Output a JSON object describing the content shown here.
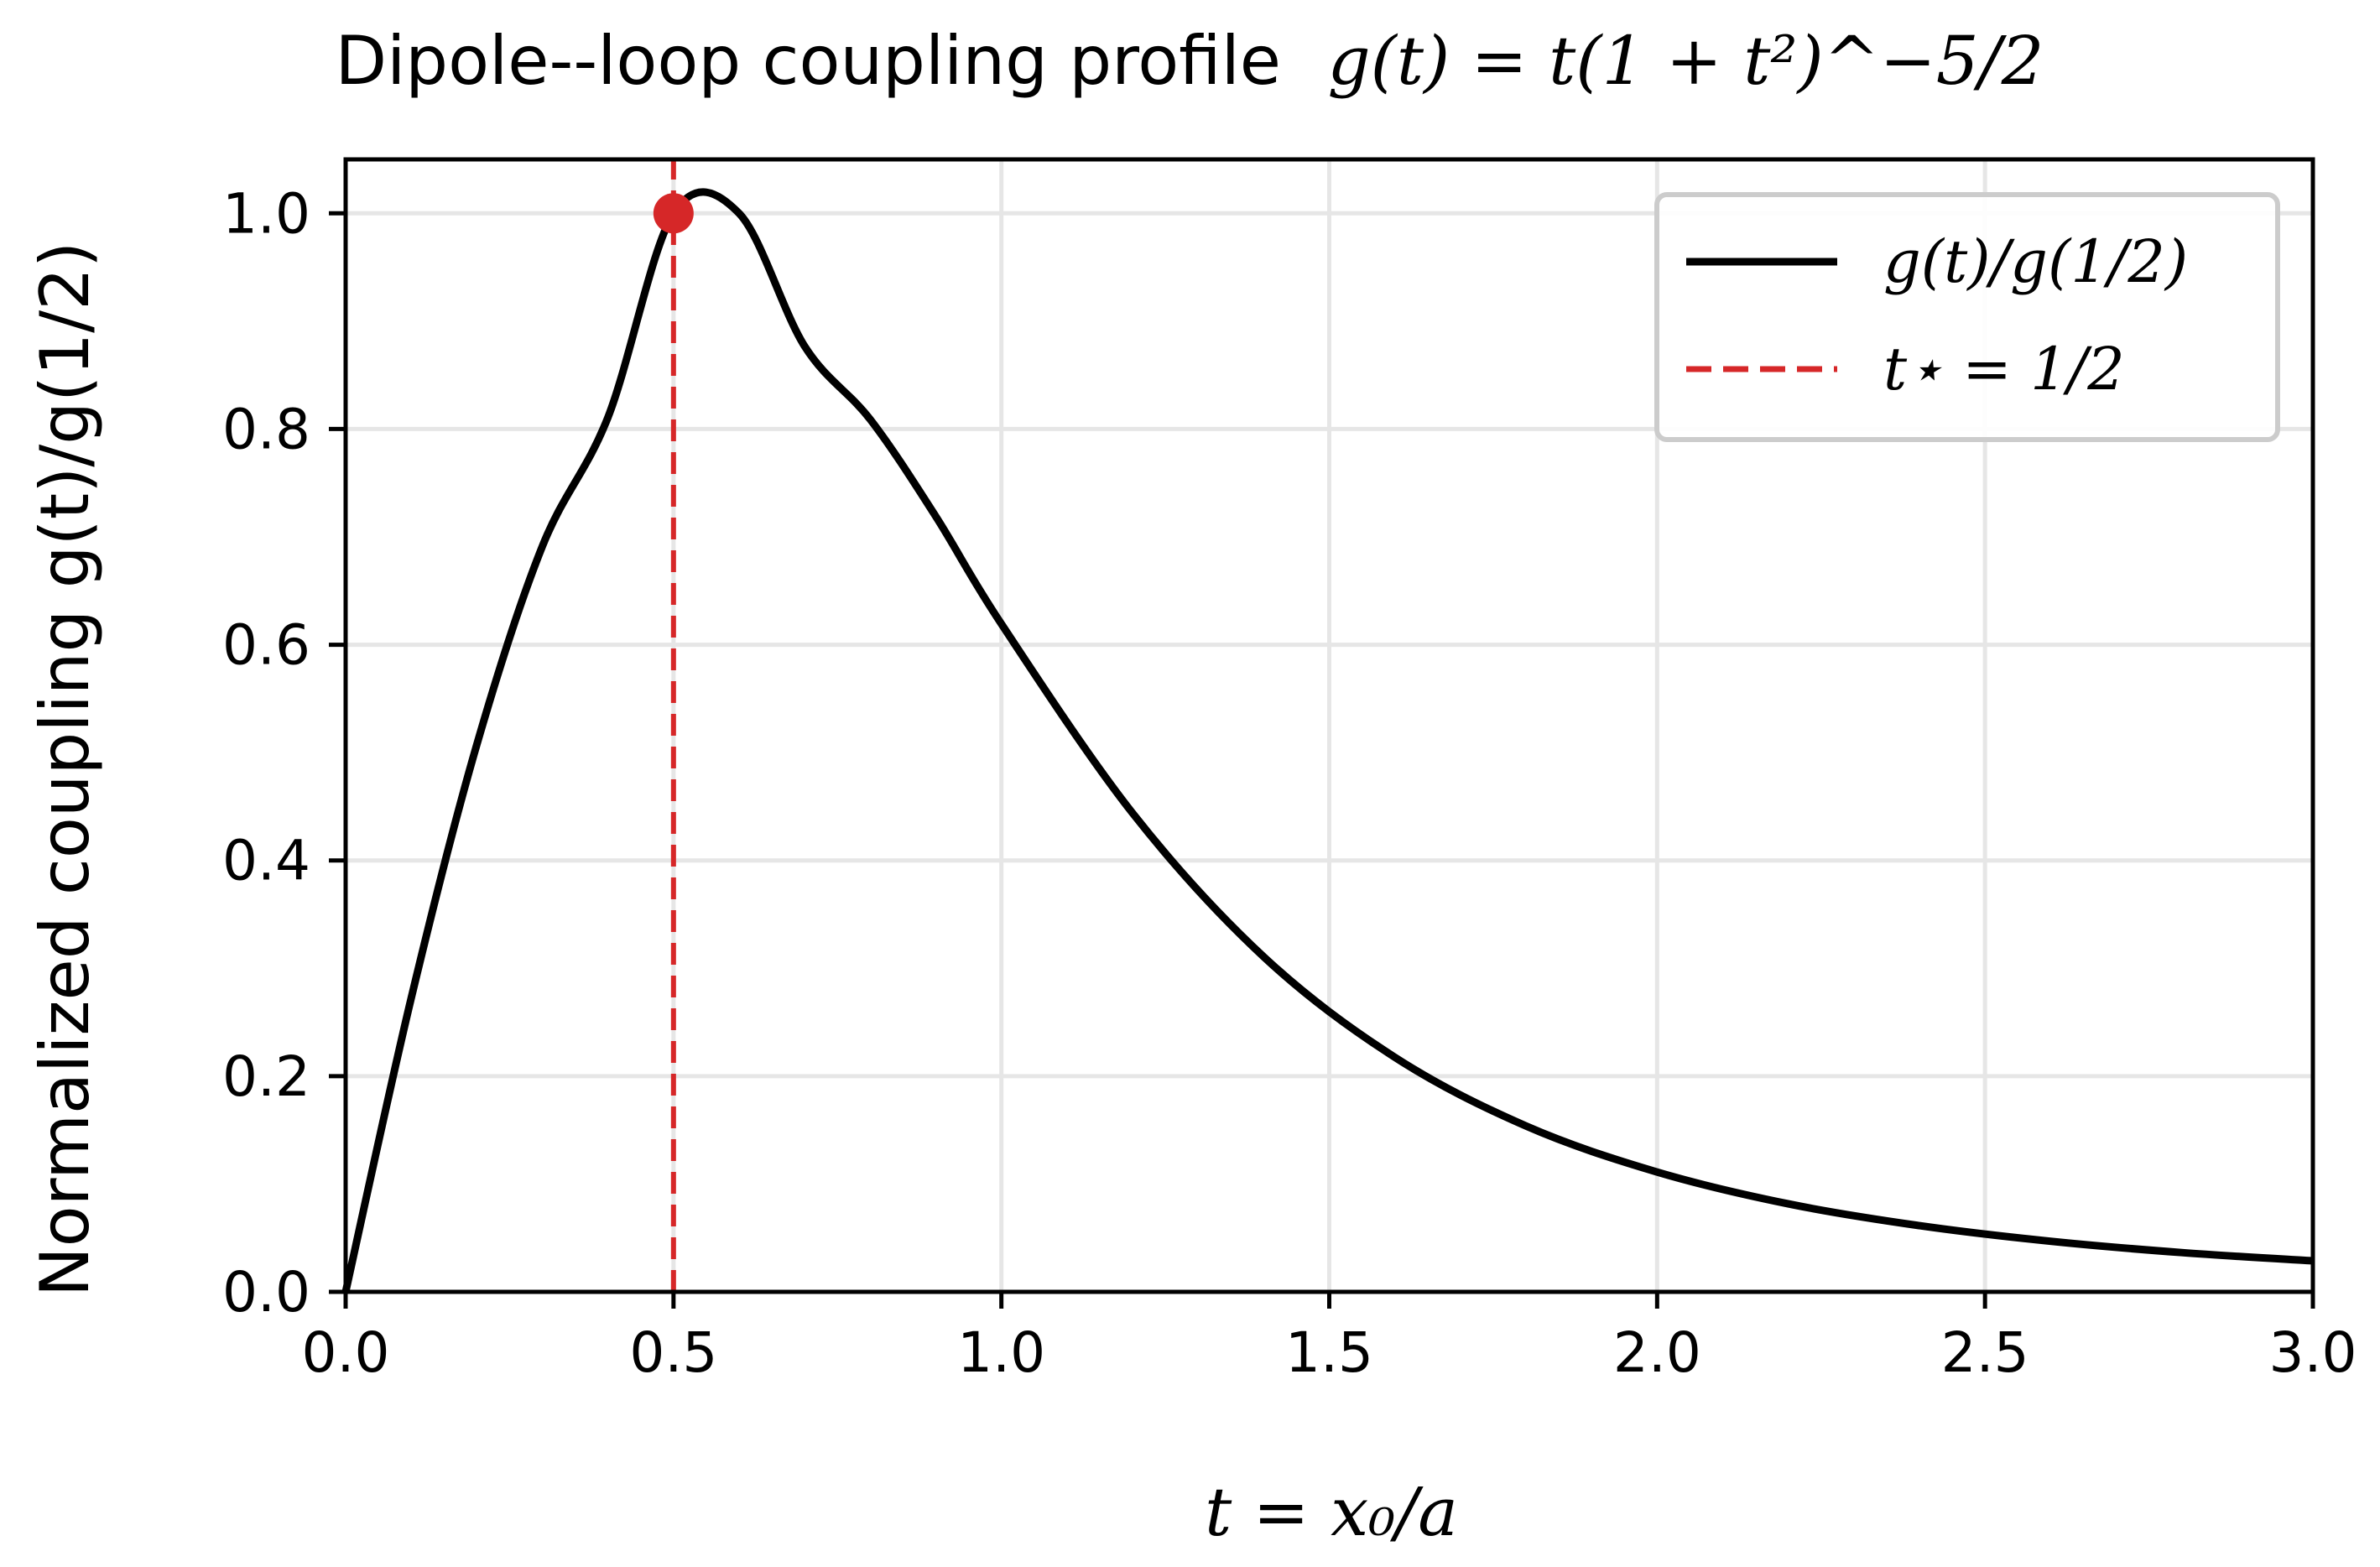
{
  "chart_data": {
    "type": "line",
    "title_prefix": "Dipole--loop coupling profile",
    "title_formula": "g(t) = t(1 + t²)^−5/2",
    "xlabel": "t = x₀/a",
    "ylabel": "Normalized coupling  g(t)/g(1/2)",
    "xlim": [
      0.0,
      3.0
    ],
    "ylim": [
      0.0,
      1.05
    ],
    "x_ticks": [
      0.0,
      0.5,
      1.0,
      1.5,
      2.0,
      2.5,
      3.0
    ],
    "x_tick_labels": [
      "0.0",
      "0.5",
      "1.0",
      "1.5",
      "2.0",
      "2.5",
      "3.0"
    ],
    "y_ticks": [
      0.0,
      0.2,
      0.4,
      0.6,
      0.8,
      1.0
    ],
    "y_tick_labels": [
      "0.0",
      "0.2",
      "0.4",
      "0.6",
      "0.8",
      "1.0"
    ],
    "grid": true,
    "legend_position": "top-right",
    "series": [
      {
        "name": "g(t)/g(1/2)",
        "style": "solid",
        "color": "#000000",
        "x": [
          0.0,
          0.1,
          0.2,
          0.3,
          0.4,
          0.5,
          0.6,
          0.7,
          0.8,
          0.9,
          1.0,
          1.2,
          1.4,
          1.6,
          1.8,
          2.0,
          2.2,
          2.4,
          2.6,
          2.8,
          3.0
        ],
        "y": [
          0.0,
          0.2724,
          0.5073,
          0.6913,
          0.8108,
          1.0,
          1.0,
          0.8767,
          0.8089,
          0.7189,
          0.6193,
          0.4439,
          0.3107,
          0.2175,
          0.1538,
          0.1111,
          0.0816,
          0.0614,
          0.0469,
          0.0364,
          0.0287
        ]
      },
      {
        "name": "t⋆ = 1/2",
        "style": "dashed",
        "color": "#d62728",
        "x": [
          0.5,
          0.5
        ],
        "y": [
          0.0,
          1.05
        ]
      }
    ],
    "annotations": [
      {
        "type": "marker",
        "x": 0.5,
        "y": 1.0,
        "color": "#d62728"
      }
    ]
  }
}
